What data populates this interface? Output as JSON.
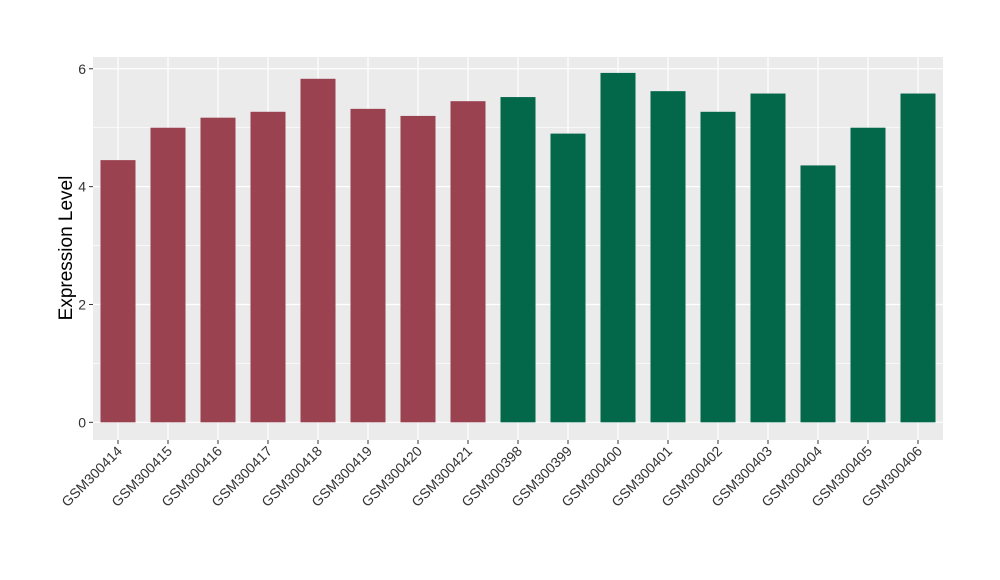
{
  "chart_data": {
    "type": "bar",
    "title": "",
    "xlabel": "",
    "ylabel": "Expression Level",
    "ylim": [
      -0.3,
      6.2
    ],
    "yticks": [
      0,
      2,
      4,
      6
    ],
    "grid": true,
    "legend": "none",
    "colors": {
      "group1": "#9a4250",
      "group2": "#03674a",
      "panel": "#ebebeb",
      "grid": "#ffffff"
    },
    "categories": [
      "GSM300414",
      "GSM300415",
      "GSM300416",
      "GSM300417",
      "GSM300418",
      "GSM300419",
      "GSM300420",
      "GSM300421",
      "GSM300398",
      "GSM300399",
      "GSM300400",
      "GSM300401",
      "GSM300402",
      "GSM300403",
      "GSM300404",
      "GSM300405",
      "GSM300406"
    ],
    "values": [
      4.45,
      5.0,
      5.17,
      5.27,
      5.83,
      5.32,
      5.2,
      5.45,
      5.52,
      4.9,
      5.93,
      5.62,
      5.27,
      5.58,
      4.36,
      5.0,
      5.58
    ],
    "groups": [
      1,
      1,
      1,
      1,
      1,
      1,
      1,
      1,
      2,
      2,
      2,
      2,
      2,
      2,
      2,
      2,
      2
    ]
  }
}
